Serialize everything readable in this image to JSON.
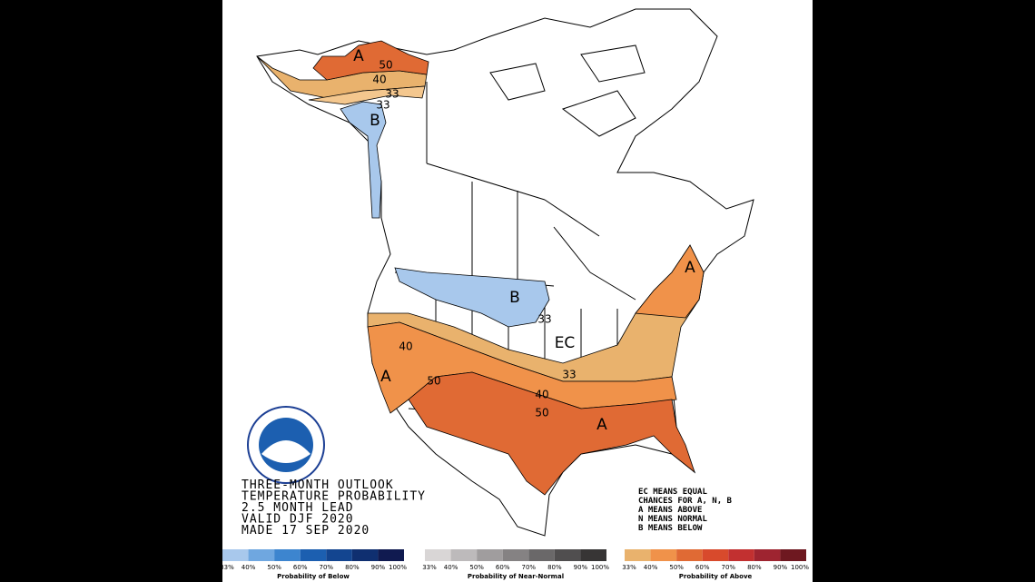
{
  "title_lines": [
    "THREE-MONTH OUTLOOK",
    "TEMPERATURE PROBABILITY",
    "2.5 MONTH LEAD",
    "VALID DJF 2020",
    "MADE 17 SEP 2020"
  ],
  "key_lines": [
    "EC MEANS EQUAL",
    "CHANCES FOR A, N, B",
    "A MEANS ABOVE",
    "N MEANS NORMAL",
    "B MEANS BELOW"
  ],
  "map_labels": [
    "A",
    "50",
    "40",
    "33",
    "33",
    "B",
    "B",
    "33",
    "EC",
    "40",
    "A",
    "50",
    "33",
    "40",
    "50",
    "A",
    "A"
  ],
  "legends": [
    {
      "title": "Probability of Below",
      "colors": [
        "#a8c8ec",
        "#6fa7e0",
        "#3d85cf",
        "#1c5fb0",
        "#134590",
        "#0f2f70",
        "#101a50"
      ],
      "ticks": [
        "33%",
        "40%",
        "50%",
        "60%",
        "70%",
        "80%",
        "90%",
        "100%"
      ]
    },
    {
      "title": "Probability of Near-Normal",
      "colors": [
        "#d9d6d6",
        "#bdbabb",
        "#a09d9e",
        "#858283",
        "#6a6869",
        "#504e4f",
        "#373535"
      ],
      "ticks": [
        "33%",
        "40%",
        "50%",
        "60%",
        "70%",
        "80%",
        "90%",
        "100%"
      ]
    },
    {
      "title": "Probability of Above",
      "colors": [
        "#e9b26d",
        "#f0924a",
        "#e06a34",
        "#d84a2c",
        "#c23030",
        "#9e2430",
        "#6e1820"
      ],
      "ticks": [
        "33%",
        "40%",
        "50%",
        "60%",
        "70%",
        "80%",
        "90%",
        "100%"
      ]
    }
  ]
}
